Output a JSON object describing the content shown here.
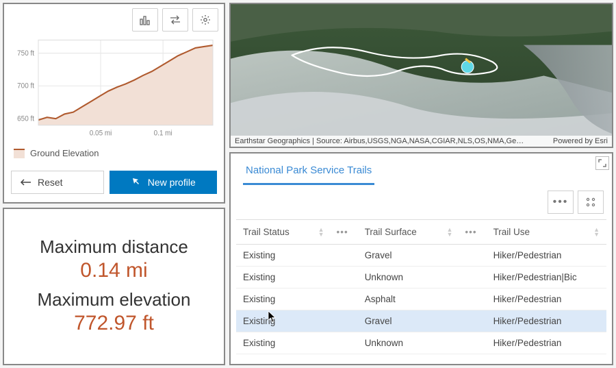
{
  "colors": {
    "accent_blue": "#0079c1",
    "tab_blue": "#3a8ad4",
    "stat_orange": "#c0562c",
    "chart_line": "#b05a2e",
    "chart_fill": "#f2e0d6",
    "grid": "#e6e6e6",
    "panel_border": "#888888",
    "row_selected": "#dce9f8"
  },
  "elevation": {
    "toolbar_icons": [
      "bar-chart-icon",
      "swap-icon",
      "settings-gear-icon"
    ],
    "chart": {
      "type": "area",
      "xlabel_unit": "mi",
      "ylabel_unit": "ft",
      "ylim": [
        640,
        770
      ],
      "yticks": [
        650,
        700,
        750
      ],
      "ytick_labels": [
        "650 ft",
        "700 ft",
        "750 ft"
      ],
      "xlim": [
        0,
        0.14
      ],
      "xticks": [
        0.05,
        0.1
      ],
      "xtick_labels": [
        "0.05 mi",
        "0.1 mi"
      ],
      "line_color": "#b05a2e",
      "fill_color": "#f2e0d6",
      "line_width": 2,
      "grid_color": "#e6e6e6",
      "background_color": "#ffffff",
      "data_x": [
        0,
        0.007,
        0.014,
        0.021,
        0.028,
        0.035,
        0.042,
        0.049,
        0.056,
        0.063,
        0.07,
        0.077,
        0.084,
        0.091,
        0.098,
        0.105,
        0.112,
        0.119,
        0.126,
        0.133,
        0.14
      ],
      "data_y": [
        648,
        652,
        650,
        657,
        660,
        668,
        676,
        684,
        692,
        698,
        703,
        709,
        716,
        722,
        730,
        738,
        746,
        752,
        758,
        760,
        762
      ]
    },
    "legend_label": "Ground Elevation",
    "reset_label": "Reset",
    "new_profile_label": "New profile"
  },
  "stats": {
    "max_distance_label": "Maximum distance",
    "max_distance_value": "0.14 mi",
    "max_elevation_label": "Maximum elevation",
    "max_elevation_value": "772.97 ft"
  },
  "map": {
    "attribution_left": "Earthstar Geographics | Source: Airbus,USGS,NGA,NASA,CGIAR,NLS,OS,NMA,Ge…",
    "attribution_right": "Powered by Esri",
    "marker_color": "#5fd8e6",
    "trail_color": "#ffffff"
  },
  "table": {
    "tab_label": "National Park Service Trails",
    "columns": [
      "Trail Status",
      "Trail Surface",
      "Trail Use"
    ],
    "rows": [
      [
        "Existing",
        "Gravel",
        "Hiker/Pedestrian"
      ],
      [
        "Existing",
        "Unknown",
        "Hiker/Pedestrian|Bic"
      ],
      [
        "Existing",
        "Asphalt",
        "Hiker/Pedestrian"
      ],
      [
        "Existing",
        "Gravel",
        "Hiker/Pedestrian"
      ],
      [
        "Existing",
        "Unknown",
        "Hiker/Pedestrian"
      ]
    ],
    "selected_row_index": 3
  }
}
